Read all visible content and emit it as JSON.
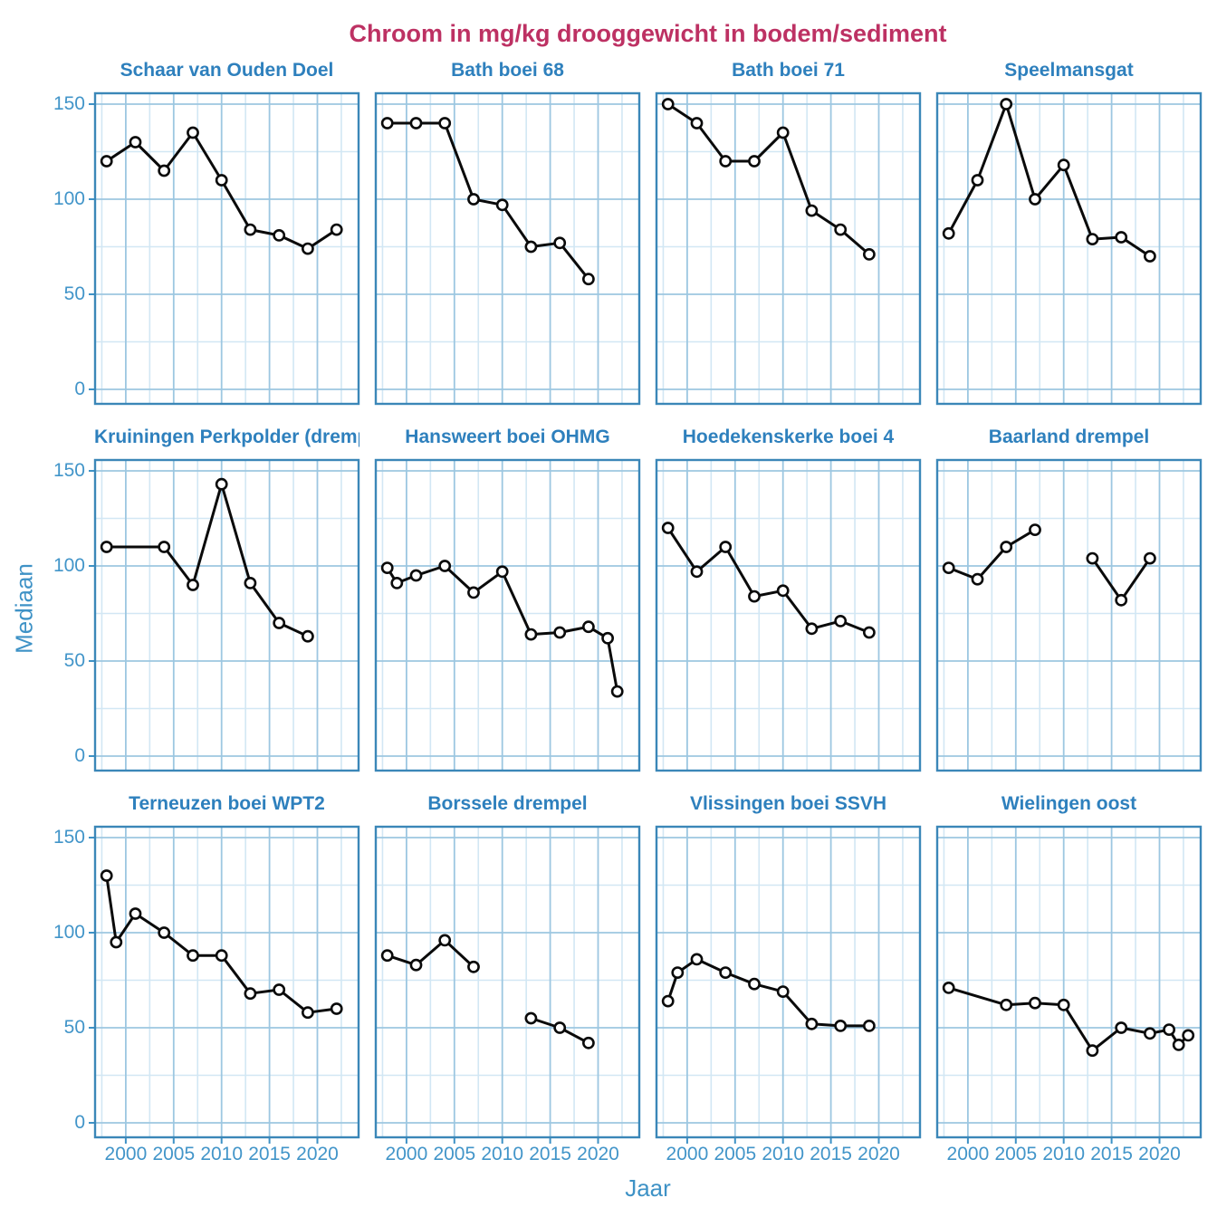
{
  "title": {
    "text": "Chroom in mg/kg drooggewicht in bodem/sediment"
  },
  "axes": {
    "y_label": "Mediaan",
    "x_label": "Jaar",
    "y_ticks": [
      0,
      50,
      100,
      150
    ],
    "y_minor": [
      25,
      75,
      125
    ],
    "x_ticks": [
      2000,
      2005,
      2010,
      2015,
      2020
    ],
    "x_minor": [
      1997.5,
      2002.5,
      2007.5,
      2012.5,
      2017.5,
      2022.5
    ],
    "x_domain": [
      1996.7,
      2024.4
    ],
    "y_domain": [
      -8,
      156
    ]
  },
  "colors": {
    "main_title": "#bd3163",
    "panel_title": "#2e80bd",
    "tick_label": "#4295c9",
    "axis_title": "#3e92c6",
    "panel_border": "#3b87b8",
    "grid_major": "#9dc7e1",
    "grid_minor": "#d2e7f4",
    "tick_mark": "#3e92c6",
    "line": "#0a0a0a",
    "marker_fill": "#ffffff",
    "background": "#ffffff"
  },
  "chart_data": {
    "type": "line",
    "title": "Chroom in mg/kg drooggewicht in bodem/sediment",
    "xlabel": "Jaar",
    "ylabel": "Mediaan",
    "x_ticks": [
      2000,
      2005,
      2010,
      2015,
      2020
    ],
    "y_ticks": [
      0,
      50,
      100,
      150
    ],
    "grid": true,
    "marker": "open-circle",
    "facets": [
      {
        "station": "Schaar van Ouden Doel",
        "points": [
          [
            1998,
            120
          ],
          [
            2001,
            130
          ],
          [
            2004,
            115
          ],
          [
            2007,
            135
          ],
          [
            2010,
            110
          ],
          [
            2013,
            84
          ],
          [
            2016,
            81
          ],
          [
            2019,
            74
          ],
          [
            2022,
            84
          ]
        ],
        "break_before": []
      },
      {
        "station": "Bath boei 68",
        "points": [
          [
            1998,
            140
          ],
          [
            2001,
            140
          ],
          [
            2004,
            140
          ],
          [
            2007,
            100
          ],
          [
            2010,
            97
          ],
          [
            2013,
            75
          ],
          [
            2016,
            77
          ],
          [
            2019,
            58
          ]
        ],
        "break_before": []
      },
      {
        "station": "Bath boei 71",
        "points": [
          [
            1998,
            150
          ],
          [
            2001,
            140
          ],
          [
            2004,
            120
          ],
          [
            2007,
            120
          ],
          [
            2010,
            135
          ],
          [
            2013,
            94
          ],
          [
            2016,
            84
          ],
          [
            2019,
            71
          ]
        ],
        "break_before": []
      },
      {
        "station": "Speelmansgat",
        "points": [
          [
            1998,
            82
          ],
          [
            2001,
            110
          ],
          [
            2004,
            150
          ],
          [
            2007,
            100
          ],
          [
            2010,
            118
          ],
          [
            2013,
            79
          ],
          [
            2016,
            80
          ],
          [
            2019,
            70
          ]
        ],
        "break_before": []
      },
      {
        "station": "Kruiningen Perkpolder (drempel)",
        "points": [
          [
            1998,
            110
          ],
          [
            2004,
            110
          ],
          [
            2007,
            90
          ],
          [
            2010,
            143
          ],
          [
            2013,
            91
          ],
          [
            2016,
            70
          ],
          [
            2019,
            63
          ]
        ],
        "break_before": []
      },
      {
        "station": "Hansweert boei OHMG",
        "points": [
          [
            1998,
            99
          ],
          [
            1999,
            91
          ],
          [
            2001,
            95
          ],
          [
            2004,
            100
          ],
          [
            2007,
            86
          ],
          [
            2010,
            97
          ],
          [
            2013,
            64
          ],
          [
            2016,
            65
          ],
          [
            2019,
            68
          ],
          [
            2021,
            62
          ],
          [
            2022,
            34
          ]
        ],
        "break_before": []
      },
      {
        "station": "Hoedekenskerke boei 4",
        "points": [
          [
            1998,
            120
          ],
          [
            2001,
            97
          ],
          [
            2004,
            110
          ],
          [
            2007,
            84
          ],
          [
            2010,
            87
          ],
          [
            2013,
            67
          ],
          [
            2016,
            71
          ],
          [
            2019,
            65
          ]
        ],
        "break_before": []
      },
      {
        "station": "Baarland drempel",
        "points": [
          [
            1998,
            99
          ],
          [
            2001,
            93
          ],
          [
            2004,
            110
          ],
          [
            2007,
            119
          ],
          [
            2013,
            104
          ],
          [
            2016,
            82
          ],
          [
            2019,
            104
          ]
        ],
        "break_before": [
          4
        ]
      },
      {
        "station": "Terneuzen boei WPT2",
        "points": [
          [
            1998,
            130
          ],
          [
            1999,
            95
          ],
          [
            2001,
            110
          ],
          [
            2004,
            100
          ],
          [
            2007,
            88
          ],
          [
            2010,
            88
          ],
          [
            2013,
            68
          ],
          [
            2016,
            70
          ],
          [
            2019,
            58
          ],
          [
            2022,
            60
          ]
        ],
        "break_before": []
      },
      {
        "station": "Borssele drempel",
        "points": [
          [
            1998,
            88
          ],
          [
            2001,
            83
          ],
          [
            2004,
            96
          ],
          [
            2007,
            82
          ],
          [
            2013,
            55
          ],
          [
            2016,
            50
          ],
          [
            2019,
            42
          ]
        ],
        "break_before": [
          4
        ]
      },
      {
        "station": "Vlissingen boei SSVH",
        "points": [
          [
            1998,
            64
          ],
          [
            1999,
            79
          ],
          [
            2001,
            86
          ],
          [
            2004,
            79
          ],
          [
            2007,
            73
          ],
          [
            2010,
            69
          ],
          [
            2013,
            52
          ],
          [
            2016,
            51
          ],
          [
            2019,
            51
          ]
        ],
        "break_before": []
      },
      {
        "station": "Wielingen oost",
        "points": [
          [
            1998,
            71
          ],
          [
            2004,
            62
          ],
          [
            2007,
            63
          ],
          [
            2010,
            62
          ],
          [
            2013,
            38
          ],
          [
            2016,
            50
          ],
          [
            2019,
            47
          ],
          [
            2021,
            49
          ],
          [
            2022,
            41
          ],
          [
            2023,
            46
          ]
        ],
        "break_before": []
      }
    ]
  }
}
